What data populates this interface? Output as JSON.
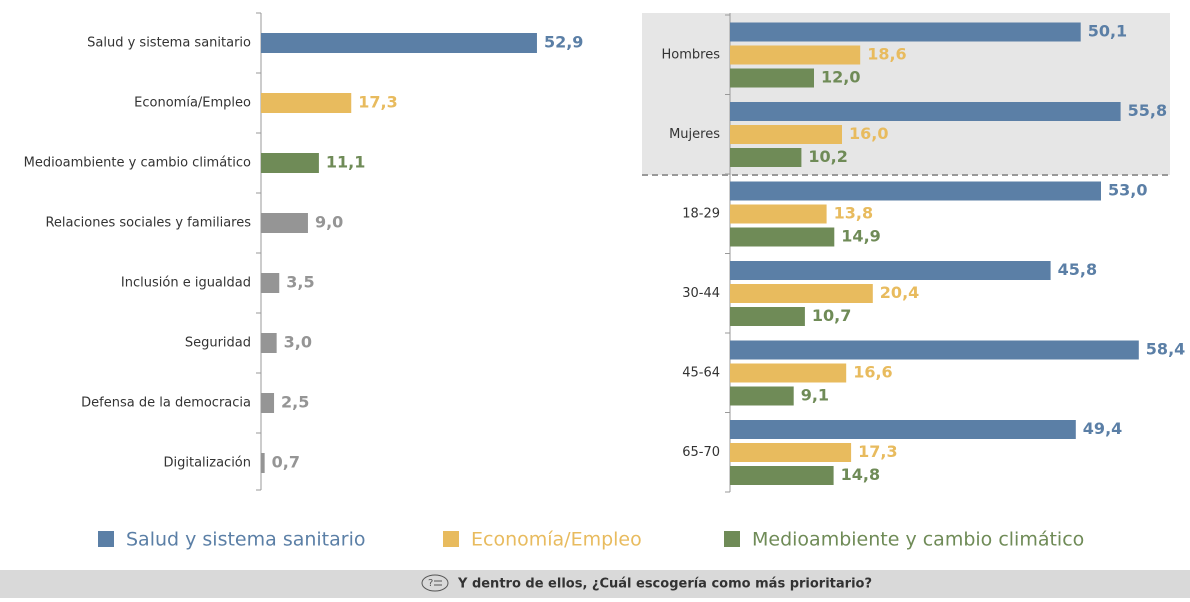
{
  "chart_data": [
    {
      "type": "hbar",
      "categories": [
        "Salud y sistema sanitario",
        "Economía/Empleo",
        "Medioambiente y cambio climático",
        "Relaciones sociales y familiares",
        "Inclusión e igualdad",
        "Seguridad",
        "Defensa de la democracia",
        "Digitalización"
      ],
      "values": [
        52.9,
        17.3,
        11.1,
        9.0,
        3.5,
        3.0,
        2.5,
        0.7
      ],
      "value_labels": [
        "52,9",
        "17,3",
        "11,1",
        "9,0",
        "3,5",
        "3,0",
        "2,5",
        "0,7"
      ],
      "colors": [
        "#5b7fa6",
        "#e8bb5e",
        "#6f8b57",
        "#959595",
        "#959595",
        "#959595",
        "#959595",
        "#959595"
      ],
      "xlim": [
        0,
        60
      ]
    },
    {
      "type": "grouped_hbar",
      "categories": [
        "Hombres",
        "Mujeres",
        "18-29",
        "30-44",
        "45-64",
        "65-70"
      ],
      "series": [
        {
          "name": "Salud y sistema sanitario",
          "color": "#5b7fa6",
          "values": [
            50.1,
            55.8,
            53.0,
            45.8,
            58.4,
            49.4
          ],
          "value_labels": [
            "50,1",
            "55,8",
            "53,0",
            "45,8",
            "58,4",
            "49,4"
          ]
        },
        {
          "name": "Economía/Empleo",
          "color": "#e8bb5e",
          "values": [
            18.6,
            16.0,
            13.8,
            20.4,
            16.6,
            17.3
          ],
          "value_labels": [
            "18,6",
            "16,0",
            "13,8",
            "20,4",
            "16,6",
            "17,3"
          ]
        },
        {
          "name": "Medioambiente y cambio climático",
          "color": "#6f8b57",
          "values": [
            12.0,
            10.2,
            14.9,
            10.7,
            9.1,
            14.8
          ],
          "value_labels": [
            "12,0",
            "10,2",
            "14,9",
            "10,7",
            "9,1",
            "14,8"
          ]
        }
      ],
      "xlim": [
        0,
        60
      ],
      "legend": "bottom"
    }
  ],
  "footer_text": "Y dentro de ellos, ¿Cuál escogería como más prioritario?"
}
